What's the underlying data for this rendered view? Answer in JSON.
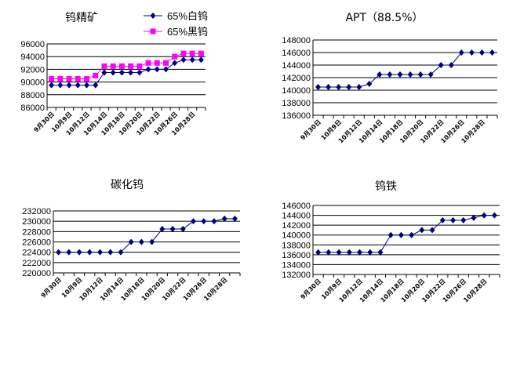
{
  "chart_data": [
    {
      "type": "line",
      "title": "钨精矿",
      "x_tick_labels": [
        "9月30日",
        "10月9日",
        "10月12日",
        "10月14日",
        "10月18日",
        "10月20日",
        "10月22日",
        "10月26日",
        "10月28日"
      ],
      "ylim": [
        86000,
        96000
      ],
      "yticks": [
        86000,
        88000,
        90000,
        92000,
        94000,
        96000
      ],
      "grid": true,
      "legend": "top-right",
      "series": [
        {
          "name": "65%白钨",
          "color": "#000080",
          "marker": "diamond",
          "values": [
            89500,
            89500,
            89500,
            89500,
            89500,
            89500,
            91500,
            91500,
            91500,
            91500,
            91500,
            92000,
            92000,
            92000,
            93000,
            93500,
            93500,
            93500
          ]
        },
        {
          "name": "65%黑钨",
          "color": "#ff00ff",
          "marker": "square",
          "values": [
            90500,
            90500,
            90500,
            90500,
            90500,
            91000,
            92500,
            92500,
            92500,
            92500,
            92500,
            93000,
            93000,
            93000,
            94000,
            94500,
            94500,
            94500
          ]
        }
      ]
    },
    {
      "type": "line",
      "title": "APT（88.5%）",
      "x_tick_labels": [
        "9月30日",
        "10月9日",
        "10月12日",
        "10月14日",
        "10月18日",
        "10月20日",
        "10月22日",
        "10月26日",
        "10月28日"
      ],
      "ylim": [
        136000,
        148000
      ],
      "yticks": [
        136000,
        138000,
        140000,
        142000,
        144000,
        146000,
        148000
      ],
      "grid": true,
      "series": [
        {
          "color": "#000080",
          "marker": "diamond",
          "values": [
            140500,
            140500,
            140500,
            140500,
            140500,
            141000,
            142500,
            142500,
            142500,
            142500,
            142500,
            142500,
            144000,
            144000,
            146000,
            146000,
            146000,
            146000
          ]
        }
      ]
    },
    {
      "type": "line",
      "title": "碳化钨",
      "x_tick_labels": [
        "9月30日",
        "10月9日",
        "10月12日",
        "10月14日",
        "10月18日",
        "10月20日",
        "10月22日",
        "10月26日",
        "10月28日"
      ],
      "ylim": [
        220000,
        232000
      ],
      "yticks": [
        220000,
        222000,
        224000,
        226000,
        228000,
        230000,
        232000
      ],
      "grid": true,
      "series": [
        {
          "color": "#000080",
          "marker": "diamond",
          "values": [
            224000,
            224000,
            224000,
            224000,
            224000,
            224000,
            224000,
            226000,
            226000,
            226000,
            228500,
            228500,
            228500,
            230000,
            230000,
            230000,
            230500,
            230500
          ]
        }
      ]
    },
    {
      "type": "line",
      "title": "钨铁",
      "x_tick_labels": [
        "9月30日",
        "10月9日",
        "10月12日",
        "10月14日",
        "10月18日",
        "10月20日",
        "10月22日",
        "10月26日",
        "10月28日"
      ],
      "ylim": [
        132000,
        146000
      ],
      "yticks": [
        132000,
        134000,
        136000,
        138000,
        140000,
        142000,
        144000,
        146000
      ],
      "grid": true,
      "series": [
        {
          "color": "#000080",
          "marker": "diamond",
          "values": [
            136500,
            136500,
            136500,
            136500,
            136500,
            136500,
            136500,
            140000,
            140000,
            140000,
            141000,
            141000,
            143000,
            143000,
            143000,
            143500,
            144000,
            144000
          ]
        }
      ]
    }
  ]
}
